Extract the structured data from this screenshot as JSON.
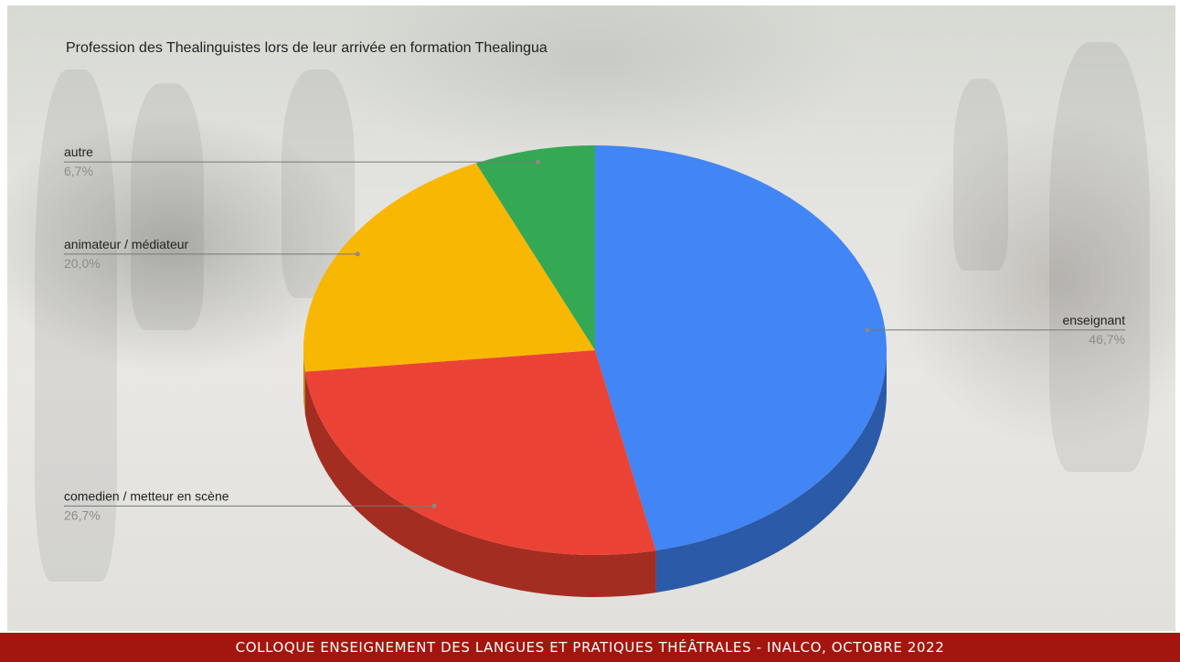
{
  "footer": {
    "text": "COLLOQUE ENSEIGNEMENT DES LANGUES ET PRATIQUES THÉÂTRALES - INALCO, OCTOBRE 2022"
  },
  "chart_data": {
    "type": "pie",
    "title": "Profession des Thealinguistes lors de leur arrivée en formation Thealingua",
    "three_d": true,
    "slices": [
      {
        "label": "enseignant",
        "value": 46.7,
        "percent": "46,7%",
        "color": "#4285f4",
        "side_color": "#2b5aa8"
      },
      {
        "label": "comedien / metteur en scène",
        "value": 26.7,
        "percent": "26,7%",
        "color": "#ea4335",
        "side_color": "#a42d22"
      },
      {
        "label": "animateur / médiateur",
        "value": 20.0,
        "percent": "20,0%",
        "color": "#f8b703",
        "side_color": "#b38504"
      },
      {
        "label": "autre",
        "value": 6.7,
        "percent": "6,7%",
        "color": "#34a853",
        "side_color": "#23763a"
      }
    ]
  }
}
